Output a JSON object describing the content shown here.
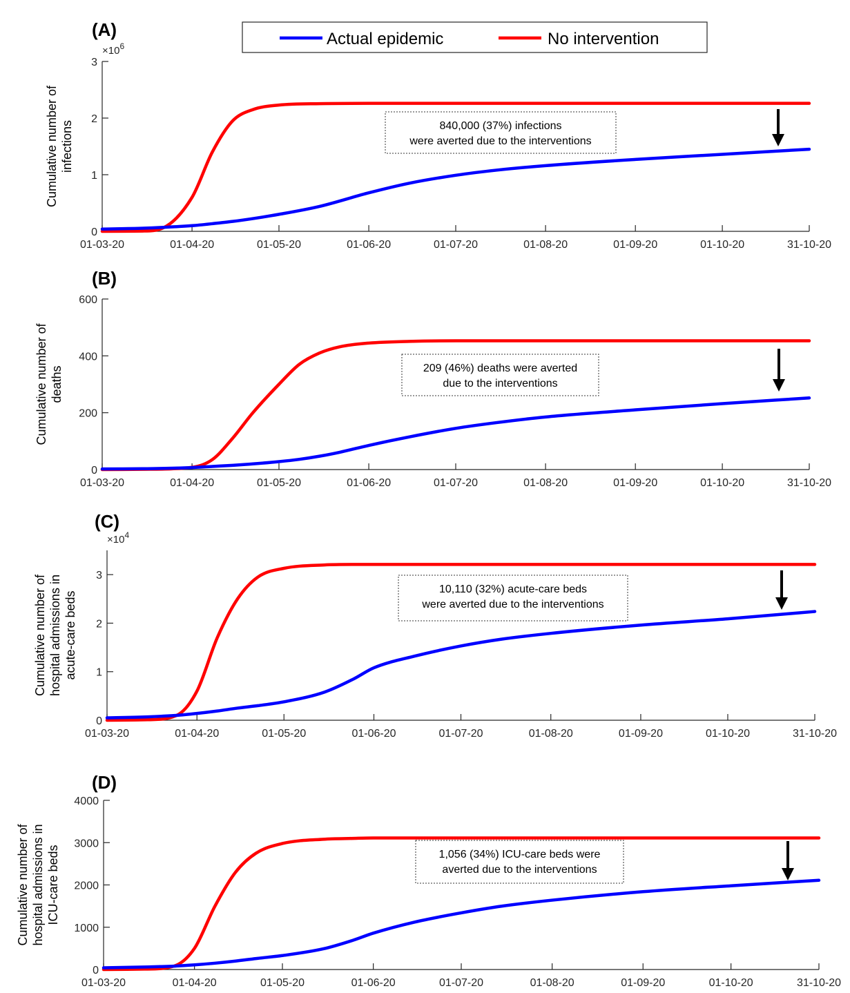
{
  "colors": {
    "actual": "#0000ff",
    "no_intervention": "#ff0000",
    "axis": "#262626"
  },
  "legend": {
    "actual_label": "Actual epidemic",
    "no_intervention_label": "No intervention"
  },
  "x_tick_labels": [
    "01-03-20",
    "01-04-20",
    "01-05-20",
    "01-06-20",
    "01-07-20",
    "01-08-20",
    "01-09-20",
    "01-10-20",
    "31-10-20"
  ],
  "chart_data": [
    {
      "type": "line",
      "panel_label": "(A)",
      "ylabel": [
        "Cumulative number of",
        "infections"
      ],
      "ylim": [
        0,
        3000000
      ],
      "yticks": [
        0,
        1000000,
        2000000,
        3000000
      ],
      "ytick_labels": [
        "0",
        "1",
        "2",
        "3"
      ],
      "y_exponent_prefix": "×10",
      "y_exponent": "6",
      "x_dates": [
        "01-03-20",
        "15-03-20",
        "22-03-20",
        "01-04-20",
        "08-04-20",
        "15-04-20",
        "22-04-20",
        "01-05-20",
        "15-05-20",
        "01-06-20",
        "15-06-20",
        "01-07-20",
        "15-07-20",
        "01-08-20",
        "01-09-20",
        "01-10-20",
        "31-10-20"
      ],
      "series": [
        {
          "name": "Actual epidemic",
          "values": [
            40000,
            55000,
            70000,
            100000,
            135000,
            175000,
            225000,
            300000,
            440000,
            680000,
            850000,
            990000,
            1080000,
            1160000,
            1270000,
            1360000,
            1450000
          ]
        },
        {
          "name": "No intervention",
          "values": [
            0,
            5000,
            60000,
            600000,
            1400000,
            1950000,
            2150000,
            2230000,
            2255000,
            2260000,
            2260000,
            2260000,
            2260000,
            2260000,
            2260000,
            2260000,
            2260000
          ]
        }
      ],
      "annotation": [
        "840,000 (37%) infections",
        "were averted due to the interventions"
      ]
    },
    {
      "type": "line",
      "panel_label": "(B)",
      "ylabel": [
        "Cumulative number of",
        "deaths"
      ],
      "ylim": [
        0,
        600
      ],
      "yticks": [
        0,
        200,
        400,
        600
      ],
      "ytick_labels": [
        "0",
        "200",
        "400",
        "600"
      ],
      "x_dates": [
        "01-03-20",
        "15-03-20",
        "01-04-20",
        "08-04-20",
        "15-04-20",
        "22-04-20",
        "01-05-20",
        "08-05-20",
        "15-05-20",
        "22-05-20",
        "01-06-20",
        "15-06-20",
        "01-07-20",
        "15-07-20",
        "01-08-20",
        "01-09-20",
        "01-10-20",
        "31-10-20"
      ],
      "series": [
        {
          "name": "Actual epidemic",
          "values": [
            2,
            3,
            7,
            11,
            15,
            20,
            28,
            36,
            47,
            61,
            85,
            115,
            145,
            165,
            185,
            210,
            232,
            252
          ]
        },
        {
          "name": "No intervention",
          "values": [
            0,
            1,
            8,
            35,
            110,
            200,
            300,
            370,
            410,
            432,
            445,
            451,
            453,
            453,
            453,
            453,
            453,
            453
          ]
        }
      ],
      "annotation": [
        "209 (46%) deaths were averted",
        "due to the interventions"
      ]
    },
    {
      "type": "line",
      "panel_label": "(C)",
      "ylabel": [
        "Cumulative number of",
        "hospital admissions in",
        "acute-care beds"
      ],
      "ylim": [
        0,
        35000
      ],
      "yticks": [
        0,
        10000,
        20000,
        30000
      ],
      "ytick_labels": [
        "0",
        "1",
        "2",
        "3"
      ],
      "y_exponent_prefix": "×10",
      "y_exponent": "4",
      "x_dates": [
        "01-03-20",
        "15-03-20",
        "25-03-20",
        "01-04-20",
        "08-04-20",
        "15-04-20",
        "22-04-20",
        "01-05-20",
        "15-05-20",
        "25-05-20",
        "01-06-20",
        "15-06-20",
        "01-07-20",
        "15-07-20",
        "01-08-20",
        "01-09-20",
        "01-10-20",
        "31-10-20"
      ],
      "series": [
        {
          "name": "Actual epidemic",
          "values": [
            500,
            700,
            1000,
            1400,
            1900,
            2500,
            3000,
            3800,
            5800,
            8500,
            10800,
            13200,
            15300,
            16700,
            17900,
            19600,
            20900,
            22400
          ]
        },
        {
          "name": "No intervention",
          "values": [
            0,
            100,
            1000,
            6000,
            17000,
            25000,
            29500,
            31300,
            32000,
            32100,
            32100,
            32100,
            32100,
            32100,
            32100,
            32100,
            32100,
            32100
          ]
        }
      ],
      "annotation": [
        "10,110 (32%) acute-care beds",
        "were averted due to the interventions"
      ]
    },
    {
      "type": "line",
      "panel_label": "(D)",
      "ylabel": [
        "Cumulative number of",
        "hospital admissions in",
        "ICU-care beds"
      ],
      "ylim": [
        0,
        4000
      ],
      "yticks": [
        0,
        1000,
        2000,
        3000,
        4000
      ],
      "ytick_labels": [
        "0",
        "1000",
        "2000",
        "3000",
        "4000"
      ],
      "x_dates": [
        "01-03-20",
        "15-03-20",
        "25-03-20",
        "01-04-20",
        "08-04-20",
        "15-04-20",
        "22-04-20",
        "01-05-20",
        "15-05-20",
        "25-05-20",
        "01-06-20",
        "15-06-20",
        "01-07-20",
        "15-07-20",
        "01-08-20",
        "01-09-20",
        "01-10-20",
        "31-10-20"
      ],
      "series": [
        {
          "name": "Actual epidemic",
          "values": [
            40,
            60,
            80,
            110,
            150,
            200,
            260,
            330,
            490,
            690,
            860,
            1120,
            1340,
            1500,
            1640,
            1840,
            1980,
            2110
          ]
        },
        {
          "name": "No intervention",
          "values": [
            0,
            10,
            80,
            500,
            1500,
            2300,
            2750,
            2980,
            3080,
            3100,
            3110,
            3110,
            3110,
            3110,
            3110,
            3110,
            3110,
            3110
          ]
        }
      ],
      "annotation": [
        "1,056 (34%) ICU-care beds were",
        "averted due to the interventions"
      ]
    }
  ]
}
